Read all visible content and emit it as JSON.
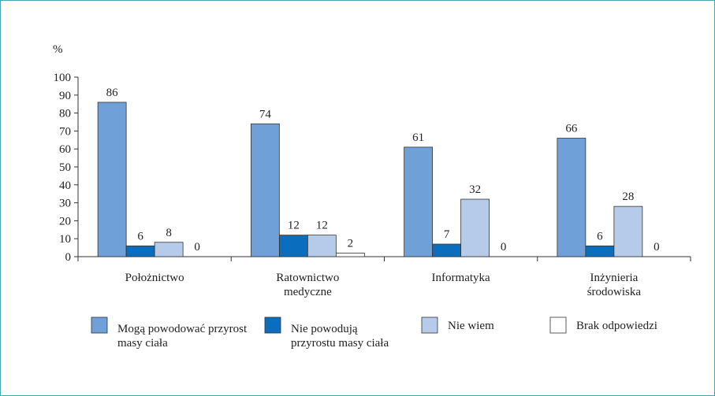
{
  "chart_data": {
    "type": "bar",
    "y_label": "%",
    "categories": [
      "Położnictwo",
      "Ratownictwo medyczne",
      "Informatyka",
      "Inżynieria środowiska"
    ],
    "series": [
      {
        "name": "Mogą powodować przyrost masy ciała",
        "color": "#6fa0d8",
        "values": [
          86,
          74,
          61,
          66
        ]
      },
      {
        "name": "Nie powodują przyrostu masy ciała",
        "color": "#0a6dbd",
        "values": [
          6,
          12,
          7,
          6
        ]
      },
      {
        "name": "Nie wiem",
        "color": "#b6cbea",
        "values": [
          8,
          12,
          32,
          28
        ]
      },
      {
        "name": "Brak odpowiedzi",
        "color": "#ffffff",
        "values": [
          0,
          2,
          0,
          0
        ]
      }
    ],
    "ylim": [
      0,
      100
    ],
    "yticks": [
      0,
      10,
      20,
      30,
      40,
      50,
      60,
      70,
      80,
      90,
      100
    ],
    "grid": false
  }
}
